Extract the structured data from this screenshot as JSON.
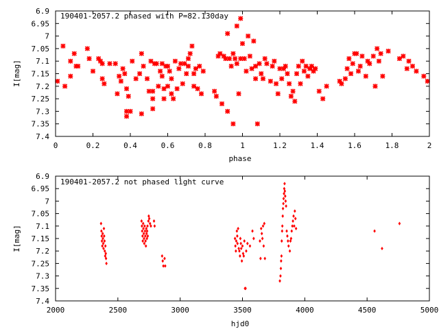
{
  "colors": {
    "points": "#ff0000",
    "axes": "#000000",
    "background": "#ffffff"
  },
  "chart_data": [
    {
      "type": "scatter",
      "title": "190401-2057.2 phased with P=82.130day",
      "xlabel": "phase",
      "ylabel": "I[mag]",
      "xlim": [
        0,
        2
      ],
      "ylim": [
        6.9,
        7.4
      ],
      "y_inverted": true,
      "grid": false,
      "marker": "star",
      "xticks": [
        "0",
        "0.2",
        "0.4",
        "0.6",
        "0.8",
        "1",
        "1.2",
        "1.4",
        "1.6",
        "1.8",
        "2"
      ],
      "yticks": [
        "6.9",
        "6.95",
        "7",
        "7.05",
        "7.1",
        "7.15",
        "7.2",
        "7.25",
        "7.3",
        "7.35",
        "7.4"
      ],
      "points": [
        [
          0.01,
          7.18
        ],
        [
          0.04,
          7.04
        ],
        [
          0.05,
          7.2
        ],
        [
          0.08,
          7.1
        ],
        [
          0.08,
          7.16
        ],
        [
          0.1,
          7.07
        ],
        [
          0.11,
          7.12
        ],
        [
          0.12,
          7.12
        ],
        [
          0.17,
          7.05
        ],
        [
          0.18,
          7.09
        ],
        [
          0.2,
          7.14
        ],
        [
          0.23,
          7.09
        ],
        [
          0.24,
          7.1
        ],
        [
          0.25,
          7.11
        ],
        [
          0.25,
          7.17
        ],
        [
          0.26,
          7.19
        ],
        [
          0.29,
          7.11
        ],
        [
          0.32,
          7.11
        ],
        [
          0.33,
          7.23
        ],
        [
          0.34,
          7.16
        ],
        [
          0.35,
          7.18
        ],
        [
          0.36,
          7.13
        ],
        [
          0.37,
          7.15
        ],
        [
          0.38,
          7.21
        ],
        [
          0.38,
          7.3
        ],
        [
          0.38,
          7.32
        ],
        [
          0.39,
          7.24
        ],
        [
          0.4,
          7.3
        ],
        [
          0.41,
          7.1
        ],
        [
          0.43,
          7.17
        ],
        [
          0.45,
          7.15
        ],
        [
          0.46,
          7.07
        ],
        [
          0.46,
          7.31
        ],
        [
          0.47,
          7.12
        ],
        [
          0.49,
          7.17
        ],
        [
          0.5,
          7.22
        ],
        [
          0.51,
          7.1
        ],
        [
          0.52,
          7.22
        ],
        [
          0.52,
          7.25
        ],
        [
          0.52,
          7.29
        ],
        [
          0.53,
          7.11
        ],
        [
          0.54,
          7.11
        ],
        [
          0.55,
          7.2
        ],
        [
          0.56,
          7.14
        ],
        [
          0.57,
          7.11
        ],
        [
          0.57,
          7.16
        ],
        [
          0.58,
          7.21
        ],
        [
          0.58,
          7.25
        ],
        [
          0.59,
          7.12
        ],
        [
          0.6,
          7.2
        ],
        [
          0.6,
          7.12
        ],
        [
          0.61,
          7.14
        ],
        [
          0.62,
          7.17
        ],
        [
          0.62,
          7.23
        ],
        [
          0.63,
          7.25
        ],
        [
          0.64,
          7.1
        ],
        [
          0.65,
          7.21
        ],
        [
          0.66,
          7.13
        ],
        [
          0.67,
          7.11
        ],
        [
          0.68,
          7.19
        ],
        [
          0.69,
          7.11
        ],
        [
          0.7,
          7.15
        ],
        [
          0.71,
          7.12
        ],
        [
          0.71,
          7.09
        ],
        [
          0.72,
          7.07
        ],
        [
          0.73,
          7.04
        ],
        [
          0.74,
          7.15
        ],
        [
          0.74,
          7.2
        ],
        [
          0.75,
          7.13
        ],
        [
          0.76,
          7.21
        ],
        [
          0.77,
          7.12
        ],
        [
          0.78,
          7.23
        ],
        [
          0.79,
          7.14
        ],
        [
          0.85,
          7.22
        ],
        [
          0.86,
          7.24
        ],
        [
          0.87,
          7.08
        ],
        [
          0.88,
          7.07
        ],
        [
          0.89,
          7.27
        ],
        [
          0.9,
          7.08
        ],
        [
          0.91,
          7.09
        ],
        [
          0.92,
          6.99
        ],
        [
          0.92,
          7.3
        ],
        [
          0.93,
          7.09
        ],
        [
          0.94,
          7.12
        ],
        [
          0.95,
          7.07
        ],
        [
          0.95,
          7.35
        ],
        [
          0.96,
          7.09
        ],
        [
          0.97,
          6.96
        ],
        [
          0.97,
          7.11
        ],
        [
          0.98,
          7.23
        ],
        [
          0.99,
          7.09
        ],
        [
          0.99,
          6.93
        ],
        [
          1.0,
          7.03
        ],
        [
          1.01,
          7.09
        ],
        [
          1.02,
          7.14
        ],
        [
          1.03,
          7.0
        ],
        [
          1.04,
          7.08
        ],
        [
          1.05,
          7.13
        ],
        [
          1.06,
          7.02
        ],
        [
          1.07,
          7.17
        ],
        [
          1.07,
          7.12
        ],
        [
          1.08,
          7.35
        ],
        [
          1.09,
          7.11
        ],
        [
          1.1,
          7.15
        ],
        [
          1.11,
          7.17
        ],
        [
          1.12,
          7.09
        ],
        [
          1.13,
          7.11
        ],
        [
          1.15,
          7.18
        ],
        [
          1.16,
          7.12
        ],
        [
          1.17,
          7.1
        ],
        [
          1.18,
          7.19
        ],
        [
          1.19,
          7.23
        ],
        [
          1.2,
          7.13
        ],
        [
          1.21,
          7.17
        ],
        [
          1.22,
          7.13
        ],
        [
          1.23,
          7.12
        ],
        [
          1.24,
          7.15
        ],
        [
          1.25,
          7.19
        ],
        [
          1.26,
          7.24
        ],
        [
          1.27,
          7.22
        ],
        [
          1.28,
          7.26
        ],
        [
          1.29,
          7.15
        ],
        [
          1.3,
          7.12
        ],
        [
          1.31,
          7.19
        ],
        [
          1.32,
          7.1
        ],
        [
          1.33,
          7.14
        ],
        [
          1.34,
          7.12
        ],
        [
          1.35,
          7.16
        ],
        [
          1.36,
          7.13
        ],
        [
          1.37,
          7.12
        ],
        [
          1.38,
          7.14
        ],
        [
          1.39,
          7.13
        ],
        [
          1.41,
          7.22
        ],
        [
          1.43,
          7.25
        ],
        [
          1.45,
          7.2
        ],
        [
          1.52,
          7.18
        ],
        [
          1.53,
          7.19
        ],
        [
          1.55,
          7.17
        ],
        [
          1.56,
          7.13
        ],
        [
          1.57,
          7.09
        ],
        [
          1.58,
          7.15
        ],
        [
          1.59,
          7.11
        ],
        [
          1.6,
          7.07
        ],
        [
          1.61,
          7.07
        ],
        [
          1.62,
          7.14
        ],
        [
          1.63,
          7.12
        ],
        [
          1.64,
          7.08
        ],
        [
          1.66,
          7.16
        ],
        [
          1.67,
          7.1
        ],
        [
          1.68,
          7.11
        ],
        [
          1.7,
          7.08
        ],
        [
          1.71,
          7.2
        ],
        [
          1.72,
          7.05
        ],
        [
          1.73,
          7.1
        ],
        [
          1.74,
          7.07
        ],
        [
          1.75,
          7.16
        ],
        [
          1.78,
          7.06
        ],
        [
          1.84,
          7.09
        ],
        [
          1.86,
          7.08
        ],
        [
          1.88,
          7.13
        ],
        [
          1.89,
          7.1
        ],
        [
          1.91,
          7.12
        ],
        [
          1.93,
          7.14
        ],
        [
          1.97,
          7.16
        ],
        [
          1.99,
          7.18
        ]
      ]
    },
    {
      "type": "scatter",
      "title": "190401-2057.2 not phased light curve",
      "xlabel": "hjd0",
      "ylabel": "I[mag]",
      "xlim": [
        2000,
        5000
      ],
      "ylim": [
        6.9,
        7.4
      ],
      "y_inverted": true,
      "grid": false,
      "marker": "diamond",
      "xticks": [
        "2000",
        "2500",
        "3000",
        "3500",
        "4000",
        "4500",
        "5000"
      ],
      "yticks": [
        "6.9",
        "6.95",
        "7",
        "7.05",
        "7.1",
        "7.15",
        "7.2",
        "7.25",
        "7.3",
        "7.35",
        "7.4"
      ],
      "points": [
        [
          2365,
          7.09
        ],
        [
          2368,
          7.12
        ],
        [
          2370,
          7.14
        ],
        [
          2372,
          7.16
        ],
        [
          2375,
          7.18
        ],
        [
          2378,
          7.13
        ],
        [
          2380,
          7.15
        ],
        [
          2383,
          7.17
        ],
        [
          2385,
          7.19
        ],
        [
          2388,
          7.11
        ],
        [
          2390,
          7.14
        ],
        [
          2393,
          7.16
        ],
        [
          2395,
          7.2
        ],
        [
          2398,
          7.22
        ],
        [
          2400,
          7.18
        ],
        [
          2403,
          7.21
        ],
        [
          2405,
          7.23
        ],
        [
          2408,
          7.25
        ],
        [
          2690,
          7.08
        ],
        [
          2693,
          7.1
        ],
        [
          2695,
          7.12
        ],
        [
          2698,
          7.14
        ],
        [
          2700,
          7.16
        ],
        [
          2703,
          7.09
        ],
        [
          2705,
          7.11
        ],
        [
          2708,
          7.13
        ],
        [
          2710,
          7.15
        ],
        [
          2712,
          7.17
        ],
        [
          2715,
          7.1
        ],
        [
          2718,
          7.12
        ],
        [
          2720,
          7.14
        ],
        [
          2722,
          7.16
        ],
        [
          2725,
          7.18
        ],
        [
          2728,
          7.11
        ],
        [
          2730,
          7.13
        ],
        [
          2733,
          7.15
        ],
        [
          2735,
          7.12
        ],
        [
          2738,
          7.1
        ],
        [
          2740,
          7.14
        ],
        [
          2745,
          7.08
        ],
        [
          2748,
          7.06
        ],
        [
          2752,
          7.07
        ],
        [
          2758,
          7.09
        ],
        [
          2765,
          7.1
        ],
        [
          2790,
          7.08
        ],
        [
          2795,
          7.1
        ],
        [
          2855,
          7.22
        ],
        [
          2860,
          7.24
        ],
        [
          2865,
          7.26
        ],
        [
          2875,
          7.23
        ],
        [
          2880,
          7.26
        ],
        [
          3440,
          7.15
        ],
        [
          3443,
          7.18
        ],
        [
          3447,
          7.2
        ],
        [
          3450,
          7.16
        ],
        [
          3455,
          7.12
        ],
        [
          3458,
          7.14
        ],
        [
          3460,
          7.17
        ],
        [
          3465,
          7.11
        ],
        [
          3470,
          7.19
        ],
        [
          3475,
          7.2
        ],
        [
          3480,
          7.22
        ],
        [
          3483,
          7.15
        ],
        [
          3487,
          7.17
        ],
        [
          3490,
          7.19
        ],
        [
          3495,
          7.24
        ],
        [
          3500,
          7.18
        ],
        [
          3505,
          7.21
        ],
        [
          3510,
          7.22
        ],
        [
          3515,
          7.16
        ],
        [
          3520,
          7.35
        ],
        [
          3525,
          7.35
        ],
        [
          3530,
          7.2
        ],
        [
          3540,
          7.17
        ],
        [
          3560,
          7.18
        ],
        [
          3580,
          7.12
        ],
        [
          3590,
          7.15
        ],
        [
          3640,
          7.16
        ],
        [
          3645,
          7.23
        ],
        [
          3650,
          7.11
        ],
        [
          3655,
          7.13
        ],
        [
          3660,
          7.15
        ],
        [
          3665,
          7.1
        ],
        [
          3670,
          7.18
        ],
        [
          3675,
          7.09
        ],
        [
          3680,
          7.23
        ],
        [
          3800,
          7.32
        ],
        [
          3805,
          7.3
        ],
        [
          3808,
          7.27
        ],
        [
          3810,
          7.24
        ],
        [
          3813,
          7.22
        ],
        [
          3815,
          7.16
        ],
        [
          3818,
          7.12
        ],
        [
          3820,
          7.1
        ],
        [
          3823,
          7.06
        ],
        [
          3825,
          7.03
        ],
        [
          3828,
          7.01
        ],
        [
          3830,
          6.99
        ],
        [
          3833,
          6.97
        ],
        [
          3835,
          6.95
        ],
        [
          3838,
          6.93
        ],
        [
          3840,
          6.96
        ],
        [
          3843,
          6.98
        ],
        [
          3846,
          7.0
        ],
        [
          3850,
          7.02
        ],
        [
          3855,
          7.12
        ],
        [
          3860,
          7.14
        ],
        [
          3865,
          7.16
        ],
        [
          3870,
          7.18
        ],
        [
          3880,
          7.2
        ],
        [
          3885,
          7.16
        ],
        [
          3890,
          7.15
        ],
        [
          3895,
          7.12
        ],
        [
          3900,
          7.1
        ],
        [
          3905,
          7.08
        ],
        [
          3910,
          7.06
        ],
        [
          3915,
          7.1
        ],
        [
          3920,
          7.04
        ],
        [
          3925,
          7.07
        ],
        [
          3930,
          7.11
        ],
        [
          4560,
          7.12
        ],
        [
          4620,
          7.19
        ],
        [
          4760,
          7.09
        ]
      ]
    }
  ]
}
